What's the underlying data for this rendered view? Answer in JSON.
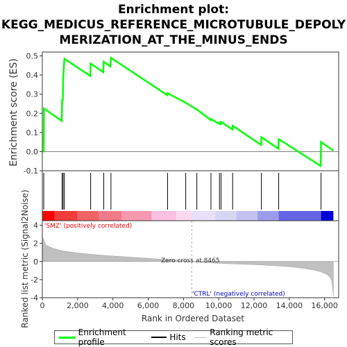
{
  "title_line1": "Enrichment plot:",
  "title_line2": "KEGG_MEDICUS_REFERENCE_MICROTUBULE_DEPOLY",
  "title_line3": "MERIZATION_AT_THE_MINUS_ENDS",
  "legend": {
    "profile": "Enrichment profile",
    "hits": "Hits",
    "metric": "Ranking metric scores"
  },
  "colors": {
    "profile": "#00ff00",
    "hits": "#000000",
    "metric_fill": "#c0c0c0",
    "pos": "#ff0000",
    "neg": "#0000ff"
  },
  "chart_data": {
    "type": "line",
    "xlabel": "Rank in Ordered Dataset",
    "ylabel_top": "Enrichment score (ES)",
    "ylabel_bottom": "Ranked list metric (Signal2Noise)",
    "xlim": [
      0,
      16800
    ],
    "es_ylim": [
      -0.1,
      0.52
    ],
    "metric_ylim": [
      -4,
      4.5
    ],
    "x_ticks": [
      "0",
      "2,000",
      "4,000",
      "6,000",
      "8,000",
      "10,000",
      "12,000",
      "14,000",
      "16,000"
    ],
    "x_tick_values": [
      0,
      2000,
      4000,
      6000,
      8000,
      10000,
      12000,
      14000,
      16000
    ],
    "es_ticks": [
      "-0.1",
      "0.0",
      "0.1",
      "0.2",
      "0.3",
      "0.4",
      "0.5"
    ],
    "es_tick_values": [
      -0.1,
      0.0,
      0.1,
      0.2,
      0.3,
      0.4,
      0.5
    ],
    "metric_ticks": [
      "-4",
      "-2",
      "0",
      "2",
      "4"
    ],
    "metric_tick_values": [
      -4,
      -2,
      0,
      2,
      4
    ],
    "enrichment_profile": {
      "x": [
        0,
        80,
        90,
        1100,
        1120,
        1160,
        1180,
        1250,
        2720,
        2740,
        3450,
        3480,
        3860,
        3890,
        7080,
        7100,
        8120,
        8130,
        8750,
        8760,
        9550,
        9560,
        10030,
        10040,
        10120,
        10130,
        10780,
        10790,
        12400,
        12420,
        13380,
        13400,
        15780,
        15800,
        16500
      ],
      "y": [
        0.0,
        0.0,
        0.225,
        0.16,
        0.27,
        0.27,
        0.38,
        0.485,
        0.395,
        0.46,
        0.415,
        0.47,
        0.445,
        0.49,
        0.295,
        0.305,
        0.255,
        0.255,
        0.22,
        0.22,
        0.165,
        0.17,
        0.145,
        0.15,
        0.145,
        0.155,
        0.115,
        0.135,
        0.035,
        0.075,
        0.015,
        0.065,
        -0.075,
        0.05,
        0.005
      ]
    },
    "hits": [
      80,
      1120,
      1180,
      1250,
      2740,
      3480,
      3890,
      7100,
      8130,
      8760,
      9560,
      10040,
      10130,
      10790,
      12420,
      13400,
      15800
    ],
    "metric_profile": {
      "x": [
        0,
        200,
        600,
        1200,
        2000,
        3000,
        4000,
        5000,
        6000,
        7000,
        8000,
        8465,
        9000,
        10000,
        11000,
        12000,
        13000,
        14000,
        14800,
        15400,
        15800,
        16100,
        16300,
        16400,
        16450,
        16500
      ],
      "y": [
        2.8,
        1.8,
        1.45,
        1.15,
        0.95,
        0.75,
        0.6,
        0.48,
        0.35,
        0.22,
        0.1,
        0.0,
        -0.1,
        -0.2,
        -0.28,
        -0.35,
        -0.45,
        -0.58,
        -0.75,
        -0.95,
        -1.15,
        -1.4,
        -1.7,
        -2.1,
        -2.8,
        -3.8
      ]
    },
    "zero_cross_rank": 8465,
    "annotations": {
      "zero_cross": "Zero cross at 8465",
      "pos_label": "'SMZ' (positively correlated)",
      "neg_label": "'CTRL' (negatively correlated)"
    }
  }
}
